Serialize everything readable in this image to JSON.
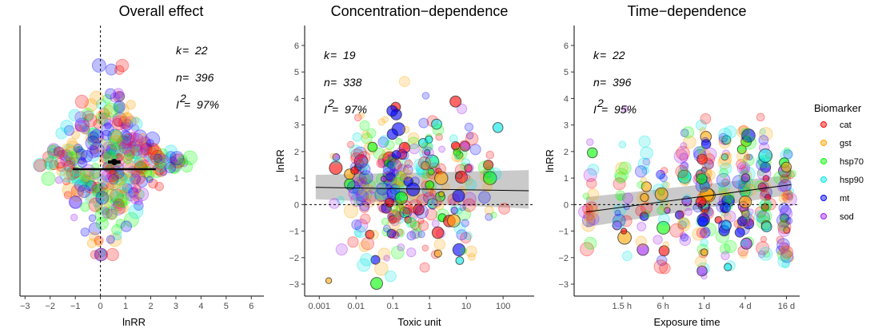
{
  "chart_data": [
    {
      "type": "scatter",
      "title": "Overall effect",
      "xlabel": "lnRR",
      "ylabel": "",
      "xlim": [
        -3.2,
        6.5
      ],
      "x_ticks": [
        -3,
        -2,
        -1,
        0,
        1,
        2,
        3,
        4,
        5,
        6
      ],
      "reference_line_x": 0,
      "stats": {
        "k": "22",
        "n": "396",
        "i2": "97%"
      },
      "summary": {
        "estimate": 0.55,
        "ci": [
          0.3,
          0.8
        ],
        "pi": [
          -1.1,
          2.2
        ]
      },
      "layout": "orchard (points jittered vertically, bubble size = precision)"
    },
    {
      "type": "scatter",
      "title": "Concentration−dependence",
      "xlabel": "Toxic unit",
      "ylabel": "lnRR",
      "x_scale": "log10",
      "xlim": [
        0.0004,
        700
      ],
      "ylim": [
        -3.3,
        6.6
      ],
      "x_ticks": [
        {
          "value": 0.001,
          "label": "0.001"
        },
        {
          "value": 0.01,
          "label": "0.01"
        },
        {
          "value": 0.1,
          "label": "0.1"
        },
        {
          "value": 1,
          "label": "1"
        },
        {
          "value": 10,
          "label": "10"
        },
        {
          "value": 100,
          "label": "100"
        }
      ],
      "y_ticks": [
        -3,
        -2,
        -1,
        0,
        1,
        2,
        3,
        4,
        5,
        6
      ],
      "reference_line_y": 0,
      "stats": {
        "k": "19",
        "n": "338",
        "i2": "97%"
      },
      "fit": {
        "x": [
          0.0008,
          500
        ],
        "y": [
          0.65,
          0.52
        ],
        "lower": [
          0.2,
          -0.15
        ],
        "upper": [
          1.12,
          1.3
        ]
      }
    },
    {
      "type": "scatter",
      "title": "Time−dependence",
      "xlabel": "Exposure time",
      "ylabel": "lnRR",
      "x_scale": "log (hours)",
      "xlim": [
        0.3,
        600
      ],
      "ylim": [
        -3.3,
        6.6
      ],
      "x_ticks": [
        {
          "value": 1.5,
          "label": "1.5 h"
        },
        {
          "value": 6,
          "label": "6 h"
        },
        {
          "value": 24,
          "label": "1 d"
        },
        {
          "value": 96,
          "label": "4 d"
        },
        {
          "value": 384,
          "label": "16 d"
        }
      ],
      "y_ticks": [
        -3,
        -2,
        -1,
        0,
        1,
        2,
        3,
        4,
        5,
        6
      ],
      "reference_line_y": 0,
      "stats": {
        "k": "22",
        "n": "396",
        "i2": "95%"
      },
      "fit": {
        "x": [
          0.45,
          450
        ],
        "y": [
          -0.28,
          0.75
        ],
        "lower": [
          -0.85,
          0.38
        ],
        "upper": [
          0.28,
          1.12
        ]
      }
    }
  ],
  "legend": {
    "title": "Biomarker",
    "items": [
      {
        "label": "cat",
        "color": "#ff0000"
      },
      {
        "label": "gst",
        "color": "#ffa500"
      },
      {
        "label": "hsp70",
        "color": "#00ff00"
      },
      {
        "label": "hsp90",
        "color": "#00e5e5"
      },
      {
        "label": "mt",
        "color": "#0000ff"
      },
      {
        "label": "sod",
        "color": "#a020f0"
      }
    ]
  }
}
